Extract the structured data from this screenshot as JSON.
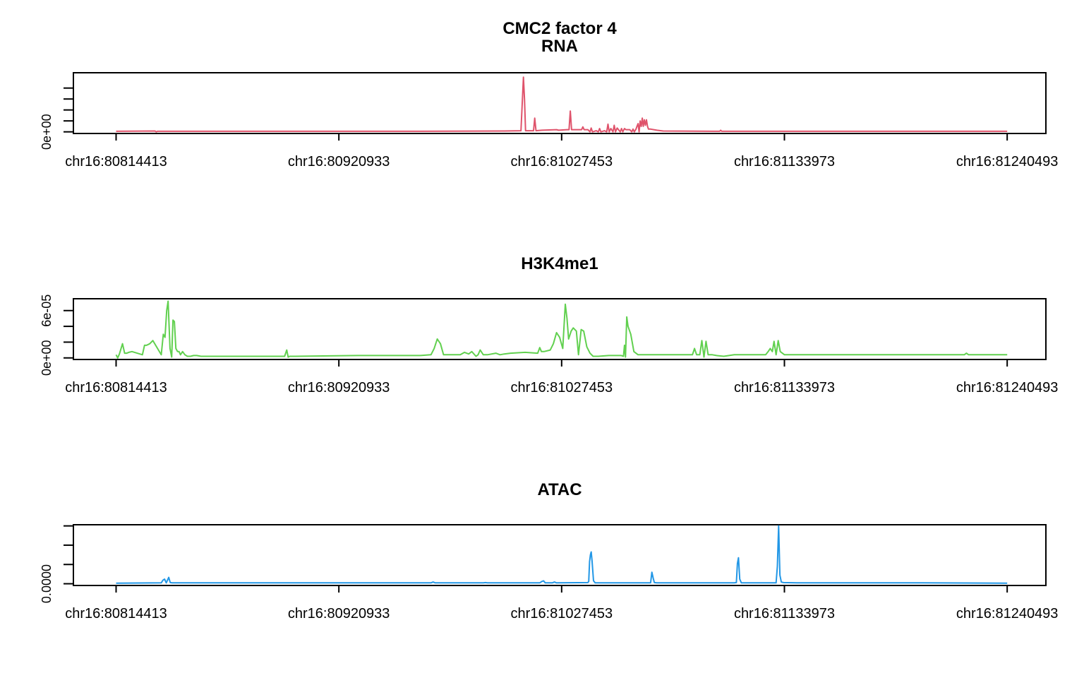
{
  "title": "CMC2 factor 4",
  "chart_data": [
    {
      "type": "line",
      "title": "RNA",
      "color": "#DF536B",
      "xlim": [
        80794000,
        81259000
      ],
      "ylim": [
        -0.03,
        1.08
      ],
      "y_tick_values": [
        0,
        0.2,
        0.4,
        0.6,
        0.8
      ],
      "y_tick_labels": [
        "0e+00"
      ],
      "x_tick_values": [
        80814413,
        80920933,
        81027453,
        81133973,
        81240493
      ],
      "x_tick_labels": [
        "chr16:80814413",
        "chr16:80920933",
        "chr16:81027453",
        "chr16:81133973",
        "chr16:81240493"
      ],
      "series": [
        {
          "x": [
            80814413,
            80833000,
            80833600,
            80834200,
            80835000,
            80900000,
            80960000,
            81000000,
            81008000,
            81009200,
            81009700,
            81010200,
            81014000,
            81014600,
            81015200,
            81018000,
            81025000,
            81026000,
            81030000,
            81031000,
            81031600,
            81032200,
            81036000,
            81037000,
            81037600,
            81038200,
            81040000,
            81041000,
            81041600,
            81042200,
            81044000,
            81045000,
            81045600,
            81046200,
            81048000,
            81049000,
            81049600,
            81050200,
            81051000,
            81052000,
            81052600,
            81053200,
            81054000,
            81055500,
            81056100,
            81056700,
            81057500,
            81058200,
            81060000,
            81061000,
            81061600,
            81062200,
            81063000,
            81063500,
            81064000,
            81064500,
            81065000,
            81065500,
            81066000,
            81066500,
            81067000,
            81067500,
            81068000,
            81068500,
            81069000,
            81070000,
            81073000,
            81076000,
            81100000,
            81103000,
            81103500,
            81104000,
            81150000,
            81200000,
            81240493
          ],
          "y": [
            0.01,
            0.015,
            0.0,
            0.01,
            0.01,
            0.01,
            0.01,
            0.015,
            0.02,
            1.0,
            0.6,
            0.02,
            0.02,
            0.25,
            0.02,
            0.03,
            0.04,
            0.03,
            0.04,
            0.04,
            0.38,
            0.04,
            0.04,
            0.04,
            0.09,
            0.04,
            0.04,
            0.0,
            0.07,
            0.0,
            0.02,
            0.0,
            0.06,
            0.0,
            0.02,
            0.0,
            0.14,
            0.0,
            0.06,
            0.0,
            0.12,
            0.0,
            0.07,
            0.0,
            0.06,
            0.0,
            0.06,
            0.04,
            0.04,
            0.0,
            0.05,
            0.0,
            0.05,
            0.1,
            0.15,
            0.0,
            0.2,
            0.1,
            0.25,
            0.1,
            0.22,
            0.12,
            0.22,
            0.1,
            0.05,
            0.05,
            0.03,
            0.015,
            0.01,
            0.01,
            0.03,
            0.01,
            0.01,
            0.01,
            0.01
          ]
        }
      ]
    },
    {
      "type": "line",
      "title": "H3K4me1",
      "color": "#61D04F",
      "xlim": [
        80794000,
        81259000
      ],
      "ylim": [
        -2e-06,
        7.5e-05
      ],
      "y_tick_values": [
        0,
        2e-05,
        4e-05,
        6e-05
      ],
      "y_tick_labels": [
        "0e+00",
        "6e-05"
      ],
      "x_tick_values": [
        80814413,
        80920933,
        81027453,
        81133973,
        81240493
      ],
      "x_tick_labels": [
        "chr16:80814413",
        "chr16:80920933",
        "chr16:81027453",
        "chr16:81133973",
        "chr16:81240493"
      ],
      "series": [
        {
          "x": [
            80814413,
            80815200,
            80816000,
            80817500,
            80818500,
            80819500,
            80820500,
            80822000,
            80827000,
            80828000,
            80829000,
            80830500,
            80832000,
            80836000,
            80837000,
            80837800,
            80838600,
            80839300,
            80840200,
            80841000,
            80841600,
            80842300,
            80843000,
            80843800,
            80844500,
            80845200,
            80846200,
            80847300,
            80848500,
            80850000,
            80851500,
            80853000,
            80855000,
            80860000,
            80880000,
            80895000,
            80896000,
            80896700,
            80897400,
            80898100,
            80900000,
            80930000,
            80960000,
            80965000,
            80966500,
            80968000,
            80969500,
            80971000,
            80979000,
            80981000,
            80983000,
            80984500,
            80986500,
            80987500,
            80988500,
            80990000,
            80992000,
            80996000,
            80998000,
            81000000,
            81003000,
            81010000,
            81016000,
            81017000,
            81017800,
            81019000,
            81022000,
            81023500,
            81025000,
            81026500,
            81028000,
            81029200,
            81030000,
            81030800,
            81032000,
            81033000,
            81034500,
            81035500,
            81036800,
            81038000,
            81039500,
            81041000,
            81042500,
            81045000,
            81050000,
            81056000,
            81057000,
            81057500,
            81058000,
            81058600,
            81059200,
            81060500,
            81062000,
            81064000,
            81066000,
            81068000,
            81080000,
            81090000,
            81091000,
            81092000,
            81093500,
            81094500,
            81095500,
            81096500,
            81097500,
            81099500,
            81101500,
            81105000,
            81110000,
            81125000,
            81126200,
            81127200,
            81128200,
            81129000,
            81130000,
            81131000,
            81132000,
            81134000,
            81138000,
            81160000,
            81200000,
            81220000,
            81221000,
            81222000,
            81240493
          ],
          "y": [
            4e-06,
            0.0,
            5e-06,
            1.8e-05,
            6e-06,
            6e-06,
            7e-06,
            8e-06,
            4e-06,
            1.6e-05,
            1.6e-05,
            1.8e-05,
            2.2e-05,
            4e-06,
            3e-05,
            2.6e-05,
            6e-05,
            7.2e-05,
            1.2e-05,
            1e-06,
            4.8e-05,
            4.6e-05,
            1.2e-05,
            8e-06,
            8e-06,
            4e-06,
            8e-06,
            4e-06,
            2e-06,
            2e-06,
            3e-06,
            3e-06,
            2e-06,
            2e-06,
            2e-06,
            2e-06,
            1e-05,
            1e-06,
            2e-06,
            2e-06,
            2e-06,
            3e-06,
            3e-06,
            4e-06,
            1.2e-05,
            2.4e-05,
            1.8e-05,
            4e-06,
            4e-06,
            7e-06,
            5e-06,
            8e-06,
            2e-06,
            4e-06,
            1e-05,
            4e-06,
            4e-06,
            6e-06,
            4e-06,
            5e-06,
            6e-06,
            7e-06,
            6e-06,
            1.3e-05,
            8e-06,
            8e-06,
            1e-05,
            1.8e-05,
            3.2e-05,
            2.6e-05,
            1.2e-05,
            6.8e-05,
            5e-05,
            2.4e-05,
            3.4e-05,
            3.8e-05,
            3.4e-05,
            4e-06,
            3.6e-05,
            3.4e-05,
            1.4e-05,
            6e-06,
            2e-06,
            2e-06,
            3e-06,
            3e-06,
            2e-06,
            1.6e-05,
            1e-06,
            5.2e-05,
            4e-05,
            3e-05,
            8e-06,
            4e-06,
            4e-06,
            4e-06,
            4e-06,
            4e-06,
            1.2e-05,
            4e-06,
            4e-06,
            2.2e-05,
            1e-06,
            2.1e-05,
            4e-06,
            4e-06,
            3e-06,
            2e-06,
            4e-06,
            4e-06,
            8e-06,
            1.2e-05,
            8e-06,
            2.1e-05,
            4e-06,
            2.2e-05,
            8e-06,
            4e-06,
            4e-06,
            4e-06,
            4e-06,
            4e-06,
            6e-06,
            4e-06,
            4e-06
          ]
        }
      ]
    },
    {
      "type": "line",
      "title": "ATAC",
      "color": "#2297E6",
      "xlim": [
        80794000,
        81259000
      ],
      "ylim": [
        -0.03,
        1.02
      ],
      "y_tick_values": [
        0,
        0.333,
        0.667,
        1.0
      ],
      "y_tick_labels": [
        "0.0000"
      ],
      "x_tick_values": [
        80814413,
        80920933,
        81027453,
        81133973,
        81240493
      ],
      "x_tick_labels": [
        "chr16:80814413",
        "chr16:80920933",
        "chr16:81027453",
        "chr16:81133973",
        "chr16:81240493"
      ],
      "series": [
        {
          "x": [
            80814413,
            80836000,
            80836800,
            80837600,
            80838400,
            80839600,
            80840300,
            80841200,
            80850000,
            80900000,
            80965000,
            80966000,
            80967000,
            80990000,
            80991000,
            80992000,
            81017000,
            81018000,
            81018800,
            81019600,
            81023000,
            81024000,
            81025000,
            81040000,
            81040400,
            81040800,
            81041200,
            81041600,
            81042000,
            81042700,
            81043500,
            81070000,
            81070600,
            81071200,
            81071800,
            81073000,
            81110000,
            81111000,
            81111500,
            81112000,
            81112600,
            81113400,
            81130000,
            81130600,
            81131200,
            81131800,
            81132500,
            81133500,
            81140000,
            81200000,
            81240493
          ],
          "y": [
            0.01,
            0.015,
            0.06,
            0.08,
            0.015,
            0.11,
            0.02,
            0.015,
            0.015,
            0.015,
            0.015,
            0.03,
            0.015,
            0.015,
            0.02,
            0.015,
            0.015,
            0.04,
            0.05,
            0.015,
            0.015,
            0.03,
            0.015,
            0.02,
            0.04,
            0.38,
            0.5,
            0.55,
            0.4,
            0.05,
            0.015,
            0.015,
            0.2,
            0.1,
            0.02,
            0.015,
            0.015,
            0.02,
            0.35,
            0.45,
            0.08,
            0.015,
            0.015,
            0.3,
            1.0,
            0.15,
            0.03,
            0.02,
            0.015,
            0.015,
            0.01
          ]
        }
      ]
    }
  ]
}
